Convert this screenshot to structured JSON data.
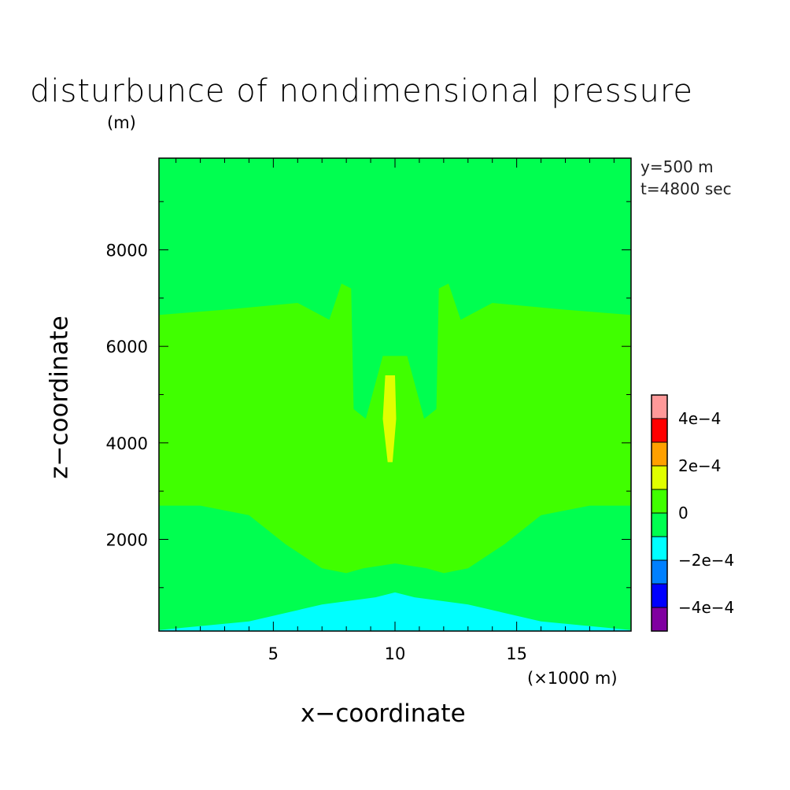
{
  "chart_data": {
    "type": "heatmap",
    "title": "disturbunce of nondimensional pressure",
    "ylabel_unit": "(m)",
    "xlabel": "x−coordinate",
    "ylabel": "z−coordinate",
    "x_unit": "(×1000 m)",
    "annotations": [
      "y=500 m",
      "t=4800 sec"
    ],
    "xlim": [
      0.3,
      19.7
    ],
    "ylim": [
      100,
      9900
    ],
    "x_ticks": [
      5,
      10,
      15
    ],
    "x_tick_labels": [
      "5",
      "10",
      "15"
    ],
    "y_ticks": [
      2000,
      4000,
      6000,
      8000
    ],
    "y_tick_labels": [
      "2000",
      "4000",
      "6000",
      "8000"
    ],
    "colorbar": {
      "levels": [
        -0.0005,
        -0.0004,
        -0.0003,
        -0.0002,
        -0.0001,
        0,
        0.0001,
        0.0002,
        0.0003,
        0.0004,
        0.0005
      ],
      "colors": [
        "#8000a0",
        "#0000ff",
        "#0080ff",
        "#00ffff",
        "#00ff50",
        "#40ff00",
        "#e0ff00",
        "#ffa000",
        "#ff0000",
        "#ff9999"
      ],
      "labels": [
        "−4e−4",
        "−2e−4",
        "0",
        "2e−4",
        "4e−4"
      ],
      "label_values": [
        -0.0004,
        -0.0002,
        0,
        0.0002,
        0.0004
      ]
    },
    "regions": [
      {
        "name": "background",
        "range": [
          -0.0001,
          0
        ],
        "color": "#00ff50"
      },
      {
        "name": "mid-layer",
        "range": [
          0,
          0.0001
        ],
        "color": "#40ff00",
        "boundary": [
          [
            0.3,
            6650
          ],
          [
            3,
            6760
          ],
          [
            6,
            6900
          ],
          [
            7.3,
            6550
          ],
          [
            7.8,
            7300
          ],
          [
            8.2,
            7200
          ],
          [
            8.3,
            4700
          ],
          [
            8.8,
            4500
          ],
          [
            9.5,
            5800
          ],
          [
            10.5,
            5800
          ],
          [
            11.2,
            4500
          ],
          [
            11.7,
            4700
          ],
          [
            11.8,
            7200
          ],
          [
            12.2,
            7300
          ],
          [
            12.7,
            6550
          ],
          [
            14,
            6900
          ],
          [
            17,
            6760
          ],
          [
            19.7,
            6650
          ],
          [
            19.7,
            2700
          ],
          [
            18,
            2700
          ],
          [
            16,
            2500
          ],
          [
            14.5,
            1900
          ],
          [
            13,
            1400
          ],
          [
            12,
            1300
          ],
          [
            11.3,
            1400
          ],
          [
            10,
            1500
          ],
          [
            8.7,
            1400
          ],
          [
            8,
            1300
          ],
          [
            7,
            1400
          ],
          [
            5.5,
            1900
          ],
          [
            4,
            2500
          ],
          [
            2,
            2700
          ],
          [
            0.3,
            2700
          ]
        ]
      },
      {
        "name": "center-column",
        "range": [
          -0.0001,
          0
        ],
        "color": "#00ff50",
        "boundary": [
          [
            9.65,
            7500
          ],
          [
            9.85,
            7500
          ],
          [
            9.88,
            6000
          ],
          [
            9.75,
            5900
          ],
          [
            9.55,
            6000
          ]
        ]
      },
      {
        "name": "center-core",
        "range": [
          0.0001,
          0.0002
        ],
        "color": "#e0ff00",
        "boundary": [
          [
            9.6,
            5400
          ],
          [
            10,
            5400
          ],
          [
            10.05,
            4500
          ],
          [
            9.9,
            3600
          ],
          [
            9.7,
            3600
          ],
          [
            9.5,
            4500
          ]
        ]
      },
      {
        "name": "surface-low",
        "range": [
          -0.0002,
          -0.0001
        ],
        "color": "#00ffff",
        "boundary": [
          [
            0.3,
            120
          ],
          [
            4,
            300
          ],
          [
            7,
            650
          ],
          [
            9.2,
            800
          ],
          [
            10,
            900
          ],
          [
            10.8,
            800
          ],
          [
            13,
            650
          ],
          [
            16,
            300
          ],
          [
            19.7,
            120
          ],
          [
            19.7,
            100
          ],
          [
            0.3,
            100
          ]
        ]
      }
    ]
  }
}
